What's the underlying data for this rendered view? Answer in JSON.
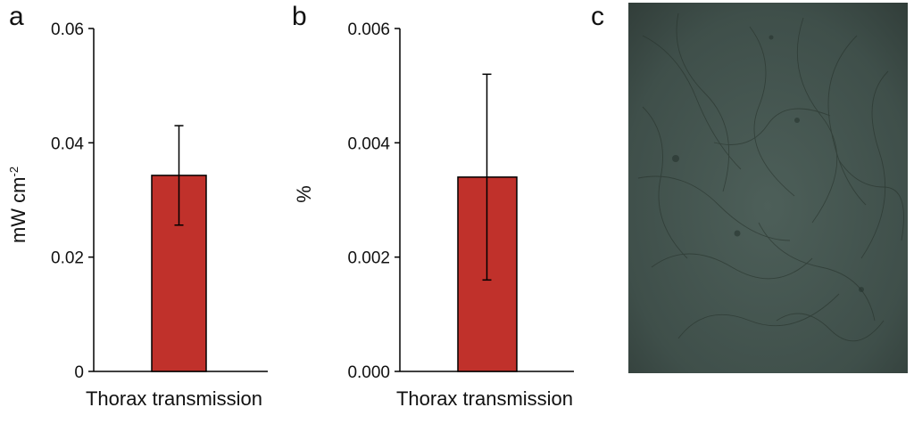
{
  "panels": {
    "a_label": "a",
    "b_label": "b",
    "c_label": "c"
  },
  "colors": {
    "bar": "#C0312B",
    "axis": "#000000",
    "photo": "#3F4F4A"
  },
  "chart_data": [
    {
      "type": "bar",
      "panel": "a",
      "categories": [
        "Thorax transmission"
      ],
      "values": [
        0.0343
      ],
      "errors": [
        0.0087
      ],
      "ylim": [
        0,
        0.06
      ],
      "yticks": [
        0,
        0.02,
        0.04,
        0.06
      ],
      "ytick_labels": [
        "0",
        "0.02",
        "0.04",
        "0.06"
      ],
      "ylabel": "mW cm",
      "ylabel_sup": "-2",
      "xlabel": "Thorax transmission"
    },
    {
      "type": "bar",
      "panel": "b",
      "categories": [
        "Thorax transmission"
      ],
      "values": [
        0.0034
      ],
      "errors": [
        0.0018
      ],
      "ylim": [
        0,
        0.006
      ],
      "yticks": [
        0,
        0.002,
        0.004,
        0.006
      ],
      "ytick_labels": [
        "0.000",
        "0.002",
        "0.004",
        "0.006"
      ],
      "ylabel": "%",
      "xlabel": "Thorax transmission"
    }
  ]
}
